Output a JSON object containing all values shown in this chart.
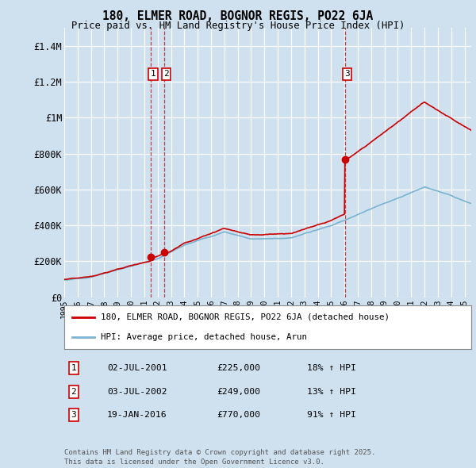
{
  "title": "180, ELMER ROAD, BOGNOR REGIS, PO22 6JA",
  "subtitle": "Price paid vs. HM Land Registry's House Price Index (HPI)",
  "ylabel_ticks": [
    "£0",
    "£200K",
    "£400K",
    "£600K",
    "£800K",
    "£1M",
    "£1.2M",
    "£1.4M"
  ],
  "ylabel_values": [
    0,
    200000,
    400000,
    600000,
    800000,
    1000000,
    1200000,
    1400000
  ],
  "ylim": [
    0,
    1500000
  ],
  "background_color": "#cfe0ef",
  "grid_color": "#ffffff",
  "red_color": "#cc0000",
  "blue_color": "#7ab3d0",
  "trans_years": [
    2001.5,
    2002.5,
    2016.05
  ],
  "trans_prices": [
    225000,
    249000,
    770000
  ],
  "trans_labels": [
    "1",
    "2",
    "3"
  ],
  "legend_entries": [
    "180, ELMER ROAD, BOGNOR REGIS, PO22 6JA (detached house)",
    "HPI: Average price, detached house, Arun"
  ],
  "table_rows": [
    {
      "num": "1",
      "date": "02-JUL-2001",
      "price": "£225,000",
      "change": "18% ↑ HPI"
    },
    {
      "num": "2",
      "date": "03-JUL-2002",
      "price": "£249,000",
      "change": "13% ↑ HPI"
    },
    {
      "num": "3",
      "date": "19-JAN-2016",
      "price": "£770,000",
      "change": "91% ↑ HPI"
    }
  ],
  "footnote": "Contains HM Land Registry data © Crown copyright and database right 2025.\nThis data is licensed under the Open Government Licence v3.0."
}
